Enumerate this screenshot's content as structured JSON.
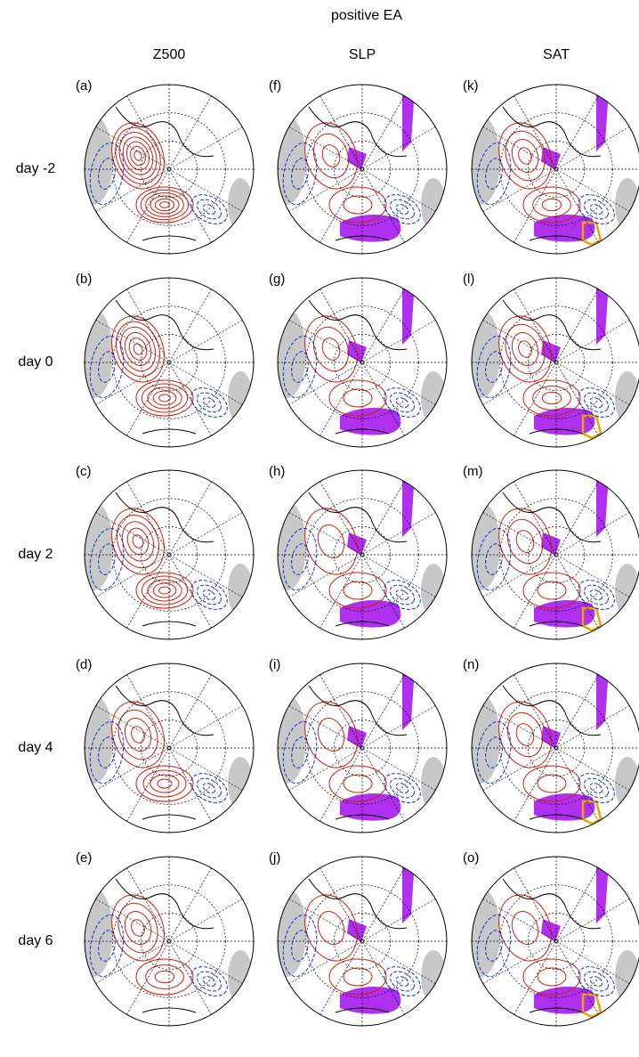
{
  "title": "positive EA",
  "columns": [
    "Z500",
    "SLP",
    "SAT"
  ],
  "rows": [
    "day -2",
    "day 0",
    "day 2",
    "day 4",
    "day 6"
  ],
  "panels": [
    [
      "(a)",
      "(b)",
      "(c)",
      "(d)",
      "(e)"
    ],
    [
      "(f)",
      "(g)",
      "(h)",
      "(i)",
      "(j)"
    ],
    [
      "(k)",
      "(l)",
      "(m)",
      "(n)",
      "(o)"
    ]
  ]
}
